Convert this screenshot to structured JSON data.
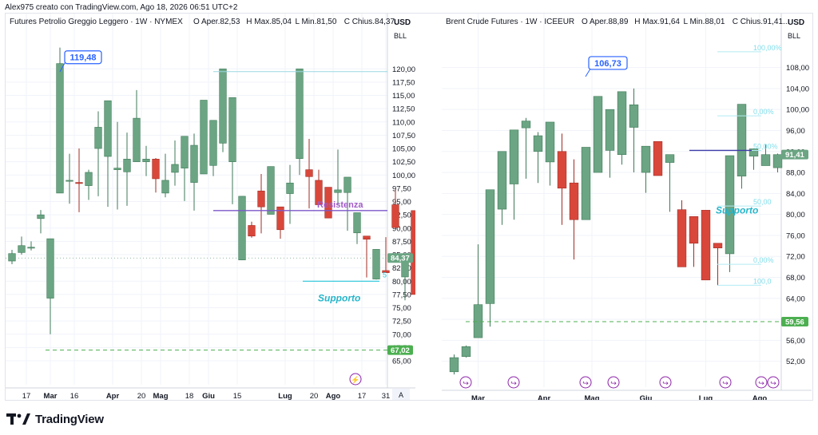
{
  "header": {
    "credit": "Alex975 creato con TradingView.com, Ago 18, 2026 06:51 UTC+2"
  },
  "brand": {
    "name": "TradingView"
  },
  "colors": {
    "up": "#6ba583",
    "up_edge": "#3f7a58",
    "down": "#d9473b",
    "down_edge": "#a22c23",
    "resist": "#7b58c9",
    "support": "#26c6da",
    "green_line": "#4caf50",
    "axis_text": "#131722"
  },
  "chart_data": [
    {
      "type": "candlestick",
      "title": "Futures Petrolio Greggio Leggero · 1W · NYMEX",
      "ohlc_legend": [
        {
          "label": "O",
          "value": "Aper.82,53"
        },
        {
          "label": "H",
          "value": "Max.85,04"
        },
        {
          "label": "L",
          "value": "Min.81,50"
        },
        {
          "label": "C",
          "value": "Chius.84,37..."
        }
      ],
      "currency": "USD",
      "currency_code": "BLL",
      "ylim": [
        62,
        123.8
      ],
      "y_ticks": [
        "120,00",
        "117,50",
        "115,00",
        "112,50",
        "110,00",
        "107,50",
        "105,00",
        "102,50",
        "100,00",
        "97,50",
        "95,00",
        "92,50",
        "90,00",
        "87,50",
        "85,00",
        "82,50",
        "80,00",
        "77,50",
        "75,00",
        "72,50",
        "70,00",
        "67,50",
        "65,00"
      ],
      "x_ticks": [
        {
          "label": "17",
          "x": 2
        },
        {
          "label": "Mar",
          "x": 4.5,
          "bold": true
        },
        {
          "label": "16",
          "x": 7
        },
        {
          "label": "Apr",
          "x": 11,
          "bold": true
        },
        {
          "label": "20",
          "x": 14
        },
        {
          "label": "Mag",
          "x": 16,
          "bold": true
        },
        {
          "label": "18",
          "x": 19
        },
        {
          "label": "Giu",
          "x": 21,
          "bold": true
        },
        {
          "label": "15",
          "x": 24
        },
        {
          "label": "Lug",
          "x": 29,
          "bold": true
        },
        {
          "label": "20",
          "x": 32
        },
        {
          "label": "Ago",
          "x": 34,
          "bold": true
        },
        {
          "label": "17",
          "x": 37
        },
        {
          "label": "31",
          "x": 39.5
        }
      ],
      "candles": [
        [
          83.8,
          85.9,
          83.2,
          85.2
        ],
        [
          85.4,
          88.4,
          85.0,
          86.7
        ],
        [
          86.4,
          87.5,
          85.8,
          86.4
        ],
        [
          91.8,
          93.4,
          89.0,
          92.5
        ],
        [
          76.8,
          85.8,
          70.0,
          88.0
        ],
        [
          96.6,
          124.0,
          103.6,
          121.0
        ],
        [
          99.0,
          104.0,
          94.6,
          99.0
        ],
        [
          98.6,
          105.0,
          93.0,
          98.4
        ],
        [
          98.0,
          101.0,
          95.3,
          100.5
        ],
        [
          105.0,
          112.0,
          96.0,
          109.0
        ],
        [
          103.5,
          107.0,
          94.0,
          114.0
        ],
        [
          101.0,
          110.0,
          93.5,
          101.3
        ],
        [
          100.6,
          108.0,
          94.2,
          103.0
        ],
        [
          102.5,
          116.0,
          102.7,
          110.7
        ],
        [
          102.5,
          105.5,
          99.8,
          103.0
        ],
        [
          103.0,
          103.2,
          96.7,
          99.3
        ],
        [
          96.6,
          104.0,
          95.8,
          99.0
        ],
        [
          100.5,
          106.5,
          98.0,
          102.0
        ],
        [
          101.3,
          104.3,
          95.1,
          107.3
        ],
        [
          98.6,
          107.8,
          93.3,
          105.6
        ],
        [
          100.2,
          102.0,
          102.0,
          114.1
        ],
        [
          101.8,
          104.0,
          99.8,
          110.3
        ],
        [
          106.0,
          114.6,
          104.3,
          120.0
        ],
        [
          102.5,
          114.2,
          94.5,
          114.6
        ],
        [
          84.0,
          91.0,
          84.0,
          96.0
        ],
        [
          90.5,
          91.2,
          88.2,
          88.5
        ],
        [
          97.0,
          100.2,
          89.0,
          94.0
        ],
        [
          92.6,
          95.4,
          96.0,
          101.6
        ],
        [
          94.0,
          92.3,
          88.0,
          89.7
        ],
        [
          96.5,
          101.9,
          90.8,
          98.5
        ],
        [
          103.1,
          116.0,
          100.0,
          120.0
        ],
        [
          101.0,
          106.8,
          93.7,
          99.7
        ],
        [
          99.0,
          101.0,
          98.7,
          94.4
        ],
        [
          97.7,
          93.6,
          92.1,
          91.9
        ],
        [
          96.7,
          104.8,
          94.5,
          97.2
        ],
        [
          96.7,
          98.9,
          89.5,
          99.6
        ],
        [
          89.1,
          90.2,
          87.0,
          92.9
        ],
        [
          88.5,
          86.0,
          80.7,
          87.9
        ],
        [
          80.4,
          81.6,
          80.3,
          86.0
        ],
        [
          82.0,
          88.3,
          83.1,
          81.6
        ],
        [
          94.4,
          97.2,
          90.2,
          90.1
        ],
        [
          80.8,
          81.5,
          76.4,
          84.0
        ],
        [
          93.3,
          90.5,
          80.3,
          77.5
        ],
        [
          76.1,
          78.8,
          77.9,
          82.4
        ],
        [
          84.4,
          85.3,
          80.2,
          85.0
        ],
        [
          81.2,
          80.2,
          76.6,
          89.8
        ],
        [
          75.1,
          80.8,
          80.8,
          82.4
        ],
        [
          82.7,
          87.7,
          79.9,
          82.5
        ],
        [
          81.7,
          83.2,
          80.9,
          82.0
        ],
        [
          82.5,
          85.0,
          81.5,
          84.4
        ]
      ],
      "last_price": "84,37",
      "resistance": {
        "label": "Resistenza",
        "value": 93.3
      },
      "support": {
        "label": "Supporto",
        "value": 80.0
      },
      "dashed_level": {
        "value": 67.02,
        "label": "67,02"
      },
      "peak_label": {
        "text": "119,48",
        "value": 119.48
      },
      "top_line": {
        "value": 119.48
      },
      "fib_fragment": "5"
    },
    {
      "type": "candlestick",
      "title": "Brent Crude Futures · 1W · ICEEUR",
      "ohlc_legend": [
        {
          "label": "O",
          "value": "Aper.88,89"
        },
        {
          "label": "H",
          "value": "Max.91,64"
        },
        {
          "label": "L",
          "value": "Min.88,01"
        },
        {
          "label": "C",
          "value": "Chius.91,41..."
        }
      ],
      "currency": "USD",
      "currency_code": "BLL",
      "ylim": [
        48.6,
        112.2
      ],
      "y_ticks": [
        "108,00",
        "104,00",
        "100,00",
        "96,00",
        "92,00",
        "88,00",
        "84,00",
        "80,00",
        "76,00",
        "72,00",
        "68,00",
        "64,00",
        "60,00",
        "56,00",
        "52,00"
      ],
      "x_ticks": [
        {
          "label": "Mar",
          "x": 2.5,
          "bold": true
        },
        {
          "label": "Apr",
          "x": 8,
          "bold": true
        },
        {
          "label": "Mag",
          "x": 12,
          "bold": true
        },
        {
          "label": "Giu",
          "x": 16.5,
          "bold": true
        },
        {
          "label": "Lug",
          "x": 21.5,
          "bold": true
        },
        {
          "label": "Ago",
          "x": 26,
          "bold": true
        }
      ],
      "candles": [
        [
          50.0,
          53.3,
          49.5,
          52.7
        ],
        [
          52.9,
          55.0,
          52.7,
          54.8
        ],
        [
          56.5,
          74.3,
          57.5,
          62.8
        ],
        [
          63.0,
          69.7,
          58.6,
          84.7
        ],
        [
          81.0,
          89.4,
          78.0,
          92.0
        ],
        [
          85.8,
          92.5,
          79.0,
          96.1
        ],
        [
          96.5,
          98.4,
          86.8,
          97.8
        ],
        [
          92.0,
          95.7,
          86.0,
          95.0
        ],
        [
          90.0,
          93.8,
          85.5,
          97.6
        ],
        [
          92.0,
          95.4,
          78.0,
          85.0
        ],
        [
          86.0,
          90.5,
          71.4,
          79.0
        ],
        [
          79.0,
          89.0,
          82.0,
          92.8
        ],
        [
          88.0,
          100.6,
          88.0,
          102.5
        ],
        [
          92.2,
          97.5,
          87.0,
          100.0
        ],
        [
          91.4,
          98.0,
          89.5,
          103.4
        ],
        [
          96.6,
          104.0,
          88.0,
          100.9
        ],
        [
          88.0,
          84.3,
          84.1,
          93.0
        ],
        [
          93.9,
          90.5,
          87.5,
          87.4
        ],
        [
          89.9,
          84.8,
          80.5,
          91.4
        ],
        [
          80.9,
          82.5,
          82.7,
          70.0
        ],
        [
          79.6,
          73.0,
          70.0,
          74.5
        ],
        [
          80.8,
          72.1,
          69.0,
          67.5
        ],
        [
          74.5,
          71.1,
          66.4,
          73.6
        ],
        [
          72.5,
          77.6,
          69.0,
          91.2
        ],
        [
          87.3,
          84.9,
          85.5,
          101.0
        ],
        [
          91.1,
          90.0,
          88.5,
          92.5
        ],
        [
          89.3,
          93.3,
          89.4,
          91.4
        ],
        [
          88.9,
          91.6,
          88.0,
          91.4
        ]
      ],
      "last_price": "91,41",
      "peak_label": {
        "text": "106,73",
        "value": 106.73
      },
      "support_label": "Supporto",
      "dashed_level": {
        "value": 59.56,
        "label": "59,56"
      },
      "fib": [
        {
          "label": "100,00%",
          "value": 111.0
        },
        {
          "label": "0,00%",
          "value": 98.8
        },
        {
          "label": "50,00%",
          "value": 92.2
        },
        {
          "label": "50,00",
          "value": 81.6
        },
        {
          "label": "0,00%",
          "value": 70.5
        },
        {
          "label": "100,0",
          "value": 66.5
        }
      ]
    }
  ]
}
